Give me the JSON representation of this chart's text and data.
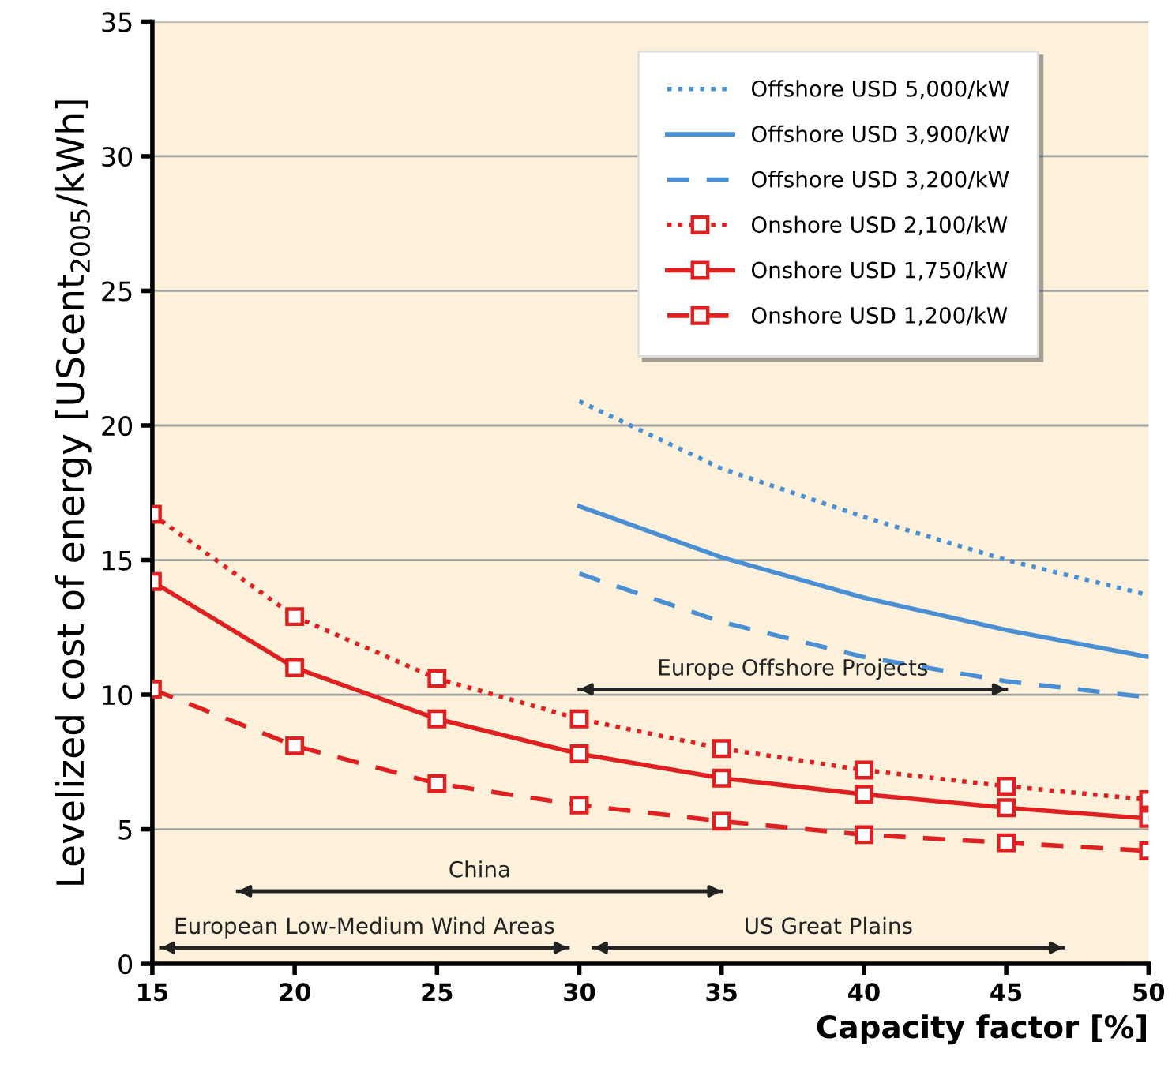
{
  "chart_data": {
    "type": "line",
    "xlabel": "Capacity factor [%]",
    "ylabel": "Levelized cost of energy [UScent$_{2005}$/kWh]",
    "xlim": [
      15,
      50
    ],
    "xticks": [
      15,
      20,
      25,
      30,
      35,
      40,
      45,
      50
    ],
    "ylim": [
      0,
      35
    ],
    "yticks": [
      0,
      5,
      10,
      15,
      20,
      25,
      30,
      35
    ],
    "grid": "y",
    "legend": "top right",
    "series": [
      {
        "name": "Offshore USD 5,000/kW",
        "color": "#4a8fd4",
        "line_style": "dotted",
        "marker": "none",
        "x": [
          30,
          35,
          40,
          45,
          50
        ],
        "values": [
          20.9,
          18.4,
          16.6,
          15.0,
          13.7
        ]
      },
      {
        "name": "Offshore USD 3,900/kW",
        "color": "#4a8fd4",
        "line_style": "solid",
        "marker": "none",
        "x": [
          30,
          35,
          40,
          45,
          50
        ],
        "values": [
          17.0,
          15.1,
          13.6,
          12.4,
          11.4
        ]
      },
      {
        "name": "Offshore USD 3,200/kW",
        "color": "#4a8fd4",
        "line_style": "dashed",
        "marker": "none",
        "x": [
          30,
          35,
          40,
          45,
          50
        ],
        "values": [
          14.5,
          12.7,
          11.4,
          10.5,
          9.9
        ]
      },
      {
        "name": "Onshore USD 2,100/kW",
        "color": "#e02020",
        "line_style": "dotted",
        "marker": "square",
        "x": [
          15,
          20,
          25,
          30,
          35,
          40,
          45,
          50
        ],
        "values": [
          16.7,
          12.9,
          10.6,
          9.1,
          8.0,
          7.2,
          6.6,
          6.1
        ]
      },
      {
        "name": "Onshore USD 1,750/kW",
        "color": "#e02020",
        "line_style": "solid",
        "marker": "square",
        "x": [
          15,
          20,
          25,
          30,
          35,
          40,
          45,
          50
        ],
        "values": [
          14.2,
          11.0,
          9.1,
          7.8,
          6.9,
          6.3,
          5.8,
          5.4
        ]
      },
      {
        "name": "Onshore USD 1,200/kW",
        "color": "#e02020",
        "line_style": "dashed",
        "marker": "square",
        "x": [
          15,
          20,
          25,
          30,
          35,
          40,
          45,
          50
        ],
        "values": [
          10.2,
          8.1,
          6.7,
          5.9,
          5.3,
          4.8,
          4.5,
          4.2
        ]
      },
      {
        "type": "line",
        "name": "Europe Offshore Projects",
        "color": "#222222",
        "x": [
          30,
          45
        ],
        "values": [
          10.2,
          10.2
        ]
      },
      {
        "type": "line",
        "name": "China",
        "color": "#222222",
        "x": [
          18,
          35
        ],
        "values": [
          2.7,
          2.7
        ]
      },
      {
        "type": "line",
        "name": "European Low-Medium Wind Areas",
        "color": "#222222",
        "x": [
          15.3,
          29.6
        ],
        "values": [
          0.6,
          0.6
        ]
      },
      {
        "type": "line",
        "name": "US Great Plains",
        "color": "#222222",
        "x": [
          30.5,
          47
        ],
        "values": [
          0.6,
          0.6
        ]
      }
    ]
  }
}
